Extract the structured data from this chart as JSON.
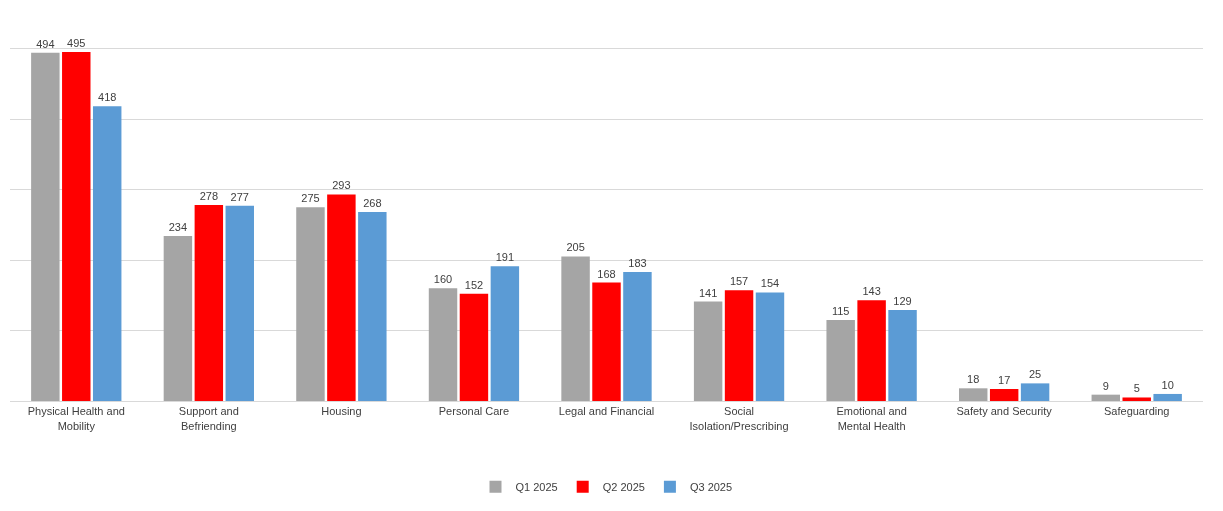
{
  "chart_data": {
    "type": "bar",
    "categories": [
      "Physical Health and Mobility",
      "Support and Befriending",
      "Housing",
      "Personal Care",
      "Legal and Financial",
      "Social Isolation/Prescribing",
      "Emotional and Mental Health",
      "Safety and Security",
      "Safeguarding"
    ],
    "series": [
      {
        "name": "Q1 2025",
        "color": "#a5a5a5",
        "values": [
          494,
          234,
          275,
          160,
          205,
          141,
          115,
          18,
          9
        ]
      },
      {
        "name": "Q2 2025",
        "color": "#ff0000",
        "values": [
          495,
          278,
          293,
          152,
          168,
          157,
          143,
          17,
          5
        ]
      },
      {
        "name": "Q3 2025",
        "color": "#5b9bd5",
        "values": [
          418,
          277,
          268,
          191,
          183,
          154,
          129,
          25,
          10
        ]
      }
    ],
    "ylim": [
      0,
      505
    ],
    "yticks": [
      {
        "value": 0,
        "label": null
      },
      {
        "value": 100,
        "label": null
      },
      {
        "value": 200,
        "label": null
      },
      {
        "value": 300,
        "label": null
      },
      {
        "value": 400,
        "label": null
      },
      {
        "value": 500,
        "label": null
      }
    ],
    "tick_labels": "x",
    "grid": "y",
    "legend": "bottom",
    "data_labels": true
  }
}
